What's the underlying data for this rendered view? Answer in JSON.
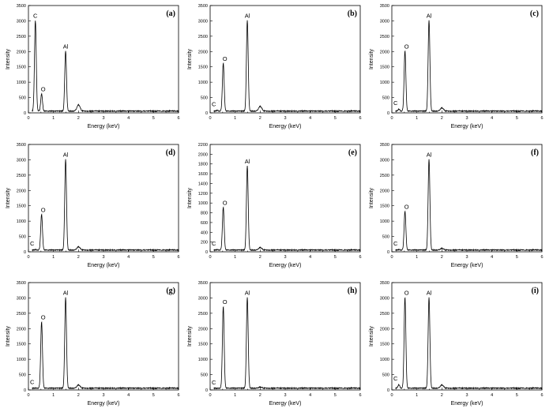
{
  "chart_data": [
    {
      "panel": "(a)",
      "type": "line",
      "xlabel": "Energy (keV)",
      "ylabel": "Intensity",
      "xlim": [
        0,
        6
      ],
      "ylim": [
        0,
        3500
      ],
      "xticks": [
        0,
        1,
        2,
        3,
        4,
        5,
        6
      ],
      "yticks": [
        0,
        500,
        1000,
        1500,
        2000,
        2500,
        3000,
        3500
      ],
      "peaks": [
        {
          "label": "C",
          "x": 0.277,
          "y": 3000
        },
        {
          "label": "O",
          "x": 0.525,
          "y": 600
        },
        {
          "label": "Al",
          "x": 1.486,
          "y": 2000
        },
        {
          "label": "",
          "x": 2.0,
          "y": 250
        }
      ]
    },
    {
      "panel": "(b)",
      "type": "line",
      "xlabel": "Energy (keV)",
      "ylabel": "Intensity",
      "xlim": [
        0,
        6
      ],
      "ylim": [
        0,
        3500
      ],
      "xticks": [
        0,
        1,
        2,
        3,
        4,
        5,
        6
      ],
      "yticks": [
        0,
        500,
        1000,
        1500,
        2000,
        2500,
        3000,
        3500
      ],
      "peaks": [
        {
          "label": "C",
          "x": 0.277,
          "y": 60
        },
        {
          "label": "O",
          "x": 0.525,
          "y": 1600
        },
        {
          "label": "Al",
          "x": 1.486,
          "y": 3000
        },
        {
          "label": "",
          "x": 2.0,
          "y": 200
        }
      ]
    },
    {
      "panel": "(c)",
      "type": "line",
      "xlabel": "Energy (keV)",
      "ylabel": "Intensity",
      "xlim": [
        0,
        6
      ],
      "ylim": [
        0,
        3500
      ],
      "xticks": [
        0,
        1,
        2,
        3,
        4,
        5,
        6
      ],
      "yticks": [
        0,
        500,
        1000,
        1500,
        2000,
        2500,
        3000,
        3500
      ],
      "peaks": [
        {
          "label": "C",
          "x": 0.277,
          "y": 100
        },
        {
          "label": "O",
          "x": 0.525,
          "y": 2000
        },
        {
          "label": "Al",
          "x": 1.486,
          "y": 3000
        },
        {
          "label": "",
          "x": 2.0,
          "y": 150
        }
      ]
    },
    {
      "panel": "(d)",
      "type": "line",
      "xlabel": "Energy (keV)",
      "ylabel": "Intensity",
      "xlim": [
        0,
        6
      ],
      "ylim": [
        0,
        3500
      ],
      "xticks": [
        0,
        1,
        2,
        3,
        4,
        5,
        6
      ],
      "yticks": [
        0,
        500,
        1000,
        1500,
        2000,
        2500,
        3000,
        3500
      ],
      "peaks": [
        {
          "label": "C",
          "x": 0.277,
          "y": 50
        },
        {
          "label": "O",
          "x": 0.525,
          "y": 1200
        },
        {
          "label": "Al",
          "x": 1.486,
          "y": 3000
        },
        {
          "label": "",
          "x": 2.0,
          "y": 150
        }
      ]
    },
    {
      "panel": "(e)",
      "type": "line",
      "xlabel": "Energy (keV)",
      "ylabel": "Intensity",
      "xlim": [
        0,
        6
      ],
      "ylim": [
        0,
        2200
      ],
      "xticks": [
        0,
        1,
        2,
        3,
        4,
        5,
        6
      ],
      "yticks": [
        0,
        200,
        400,
        600,
        800,
        1000,
        1200,
        1400,
        1600,
        1800,
        2000,
        2200
      ],
      "peaks": [
        {
          "label": "C",
          "x": 0.277,
          "y": 30
        },
        {
          "label": "O",
          "x": 0.525,
          "y": 900
        },
        {
          "label": "Al",
          "x": 1.486,
          "y": 1750
        },
        {
          "label": "",
          "x": 2.0,
          "y": 80
        }
      ]
    },
    {
      "panel": "(f)",
      "type": "line",
      "xlabel": "Energy (keV)",
      "ylabel": "Intensity",
      "xlim": [
        0,
        6
      ],
      "ylim": [
        0,
        3500
      ],
      "xticks": [
        0,
        1,
        2,
        3,
        4,
        5,
        6
      ],
      "yticks": [
        0,
        500,
        1000,
        1500,
        2000,
        2500,
        3000,
        3500
      ],
      "peaks": [
        {
          "label": "C",
          "x": 0.277,
          "y": 50
        },
        {
          "label": "O",
          "x": 0.525,
          "y": 1300
        },
        {
          "label": "Al",
          "x": 1.486,
          "y": 3000
        },
        {
          "label": "",
          "x": 2.0,
          "y": 100
        }
      ]
    },
    {
      "panel": "(g)",
      "type": "line",
      "xlabel": "Energy (keV)",
      "ylabel": "Intensity",
      "xlim": [
        0,
        6
      ],
      "ylim": [
        0,
        3500
      ],
      "xticks": [
        0,
        1,
        2,
        3,
        4,
        5,
        6
      ],
      "yticks": [
        0,
        500,
        1000,
        1500,
        2000,
        2500,
        3000,
        3500
      ],
      "peaks": [
        {
          "label": "C",
          "x": 0.277,
          "y": 40
        },
        {
          "label": "O",
          "x": 0.525,
          "y": 2200
        },
        {
          "label": "Al",
          "x": 1.486,
          "y": 3000
        },
        {
          "label": "",
          "x": 2.0,
          "y": 150
        }
      ]
    },
    {
      "panel": "(h)",
      "type": "line",
      "xlabel": "Energy (keV)",
      "ylabel": "Intensity",
      "xlim": [
        0,
        6
      ],
      "ylim": [
        0,
        3500
      ],
      "xticks": [
        0,
        1,
        2,
        3,
        4,
        5,
        6
      ],
      "yticks": [
        0,
        500,
        1000,
        1500,
        2000,
        2500,
        3000,
        3500
      ],
      "peaks": [
        {
          "label": "C",
          "x": 0.277,
          "y": 30
        },
        {
          "label": "O",
          "x": 0.525,
          "y": 2700
        },
        {
          "label": "Al",
          "x": 1.486,
          "y": 3000
        },
        {
          "label": "",
          "x": 2.0,
          "y": 80
        }
      ]
    },
    {
      "panel": "(i)",
      "type": "line",
      "xlabel": "Energy (keV)",
      "ylabel": "Intensity",
      "xlim": [
        0,
        6
      ],
      "ylim": [
        0,
        3500
      ],
      "xticks": [
        0,
        1,
        2,
        3,
        4,
        5,
        6
      ],
      "yticks": [
        0,
        500,
        1000,
        1500,
        2000,
        2500,
        3000,
        3500
      ],
      "peaks": [
        {
          "label": "C",
          "x": 0.277,
          "y": 150
        },
        {
          "label": "O",
          "x": 0.525,
          "y": 3000
        },
        {
          "label": "Al",
          "x": 1.486,
          "y": 3000
        },
        {
          "label": "",
          "x": 2.0,
          "y": 150
        }
      ]
    }
  ]
}
